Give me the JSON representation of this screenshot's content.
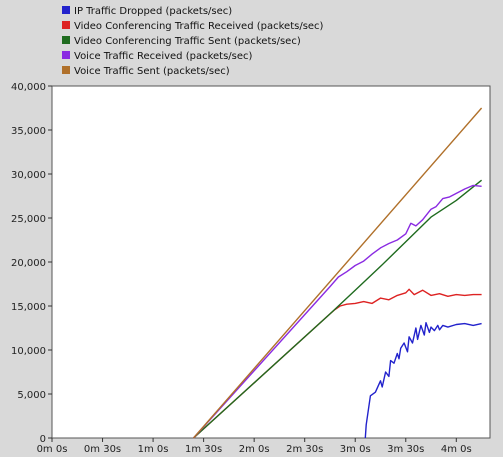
{
  "chart_data": {
    "type": "line",
    "title": "",
    "xlabel": "",
    "ylabel": "",
    "x_ticks": [
      "0m 0s",
      "0m 30s",
      "1m 0s",
      "1m 30s",
      "2m 0s",
      "2m 30s",
      "3m 0s",
      "3m 30s",
      "4m 0s"
    ],
    "y_ticks": [
      "0",
      "5,000",
      "10,000",
      "15,000",
      "20,000",
      "25,000",
      "30,000",
      "35,000",
      "40,000"
    ],
    "xlim": [
      0,
      260
    ],
    "ylim": [
      0,
      40000
    ],
    "grid": false,
    "legend_position": "top-left",
    "series": [
      {
        "name": "IP Traffic Dropped (packets/sec)",
        "color": "#2222cc",
        "x": [
          186,
          186.5,
          189,
          192,
          195,
          196,
          198,
          200,
          201,
          203,
          205,
          206,
          207,
          209,
          211,
          212,
          214,
          216,
          217,
          219,
          221,
          222,
          224,
          225,
          227,
          229,
          230,
          232,
          235,
          240,
          245,
          250,
          255
        ],
        "y": [
          0,
          1500,
          4800,
          5200,
          6500,
          5800,
          7500,
          7000,
          8800,
          8500,
          9600,
          9000,
          10200,
          10800,
          9800,
          11500,
          10800,
          12500,
          11200,
          12800,
          11700,
          13100,
          12000,
          12600,
          12200,
          12800,
          12300,
          12800,
          12600,
          12900,
          13000,
          12800,
          13000
        ]
      },
      {
        "name": "Video Conferencing Traffic Received (packets/sec)",
        "color": "#dd2222",
        "x": [
          84,
          165,
          168,
          171,
          175,
          180,
          185,
          190,
          195,
          200,
          205,
          210,
          212,
          215,
          220,
          225,
          230,
          235,
          240,
          245,
          250,
          255
        ],
        "y": [
          0,
          14100,
          14600,
          15000,
          15200,
          15300,
          15500,
          15300,
          15900,
          15700,
          16200,
          16500,
          16900,
          16300,
          16800,
          16200,
          16400,
          16100,
          16300,
          16200,
          16300,
          16300
        ]
      },
      {
        "name": "Video Conferencing Traffic Sent (packets/sec)",
        "color": "#1f6b1f",
        "x": [
          84,
          165,
          180,
          195,
          210,
          225,
          240,
          255
        ],
        "y": [
          0,
          14100,
          16800,
          19500,
          22300,
          25100,
          27000,
          29300
        ]
      },
      {
        "name": "Voice Traffic Received (packets/sec)",
        "color": "#8a2be2",
        "x": [
          84,
          165,
          170,
          175,
          180,
          185,
          190,
          195,
          200,
          205,
          210,
          213,
          216,
          220,
          225,
          228,
          232,
          236,
          240,
          245,
          250,
          255
        ],
        "y": [
          0,
          17200,
          18300,
          18900,
          19600,
          20100,
          20900,
          21600,
          22100,
          22500,
          23200,
          24400,
          24100,
          24800,
          26000,
          26300,
          27200,
          27400,
          27800,
          28300,
          28700,
          28600
        ]
      },
      {
        "name": "Voice Traffic Sent (packets/sec)",
        "color": "#b0702a",
        "x": [
          84,
          255
        ],
        "y": [
          0,
          37500
        ]
      }
    ]
  }
}
